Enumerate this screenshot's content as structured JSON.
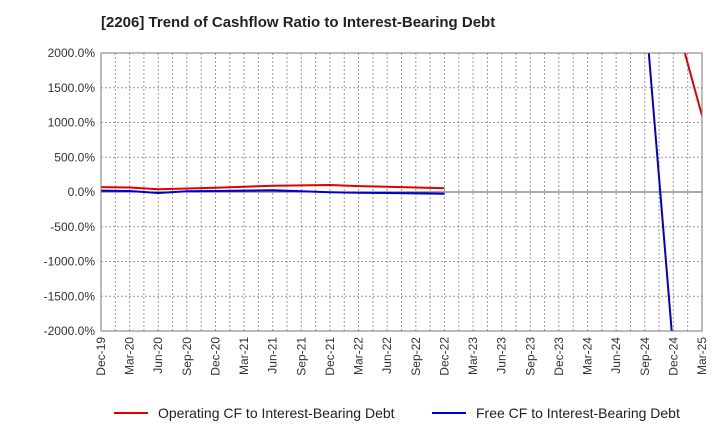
{
  "chart_data": {
    "type": "line",
    "title": "[2206]  Trend of Cashflow Ratio to Interest-Bearing Debt",
    "xlabel": "",
    "ylabel": "",
    "categories": [
      "Dec-19",
      "Mar-20",
      "Jun-20",
      "Sep-20",
      "Dec-20",
      "Mar-21",
      "Jun-21",
      "Sep-21",
      "Dec-21",
      "Mar-22",
      "Jun-22",
      "Sep-22",
      "Dec-22",
      "Mar-23",
      "Jun-23",
      "Sep-23",
      "Dec-23",
      "Mar-24",
      "Jun-24",
      "Sep-24",
      "Dec-24",
      "Mar-25"
    ],
    "ylim": [
      -2000,
      2000
    ],
    "yticks": [
      2000,
      1500,
      1000,
      500,
      0,
      -500,
      -1000,
      -1500,
      -2000
    ],
    "ytick_labels": [
      "2000.0%",
      "1500.0%",
      "1000.0%",
      "500.0%",
      "0.0%",
      "-500.0%",
      "-1000.0%",
      "-1500.0%",
      "-2000.0%"
    ],
    "grid": true,
    "legend_position": "bottom",
    "series": [
      {
        "name": "Operating CF to Interest-Bearing Debt",
        "color": "#e00000",
        "values": [
          70,
          65,
          40,
          50,
          60,
          75,
          90,
          95,
          100,
          85,
          75,
          65,
          55,
          null,
          null,
          null,
          null,
          null,
          null,
          null,
          2600,
          1100
        ]
      },
      {
        "name": "Free CF to Interest-Bearing Debt",
        "color": "#0000cc",
        "values": [
          20,
          15,
          -15,
          10,
          15,
          20,
          25,
          10,
          -5,
          -10,
          -15,
          -20,
          -25,
          null,
          null,
          null,
          null,
          null,
          null,
          2700,
          -2300,
          null
        ]
      }
    ]
  }
}
